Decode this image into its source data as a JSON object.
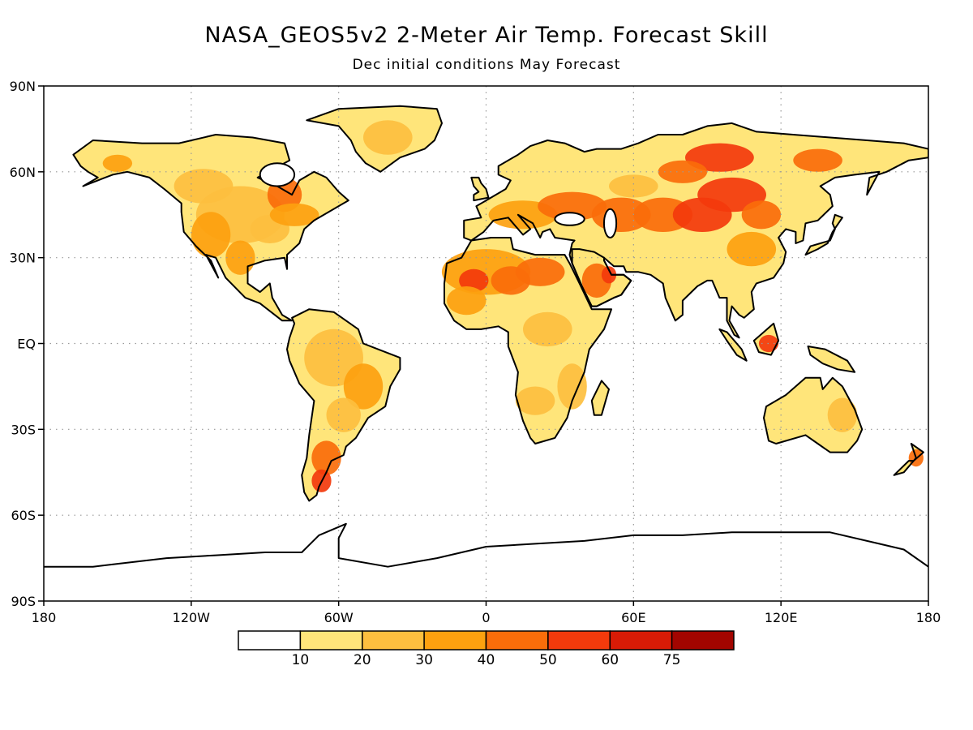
{
  "title": "NASA_GEOS5v2 2-Meter Air Temp. Forecast Skill",
  "subtitle": "Dec initial conditions   May Forecast",
  "map": {
    "projection": "equirectangular",
    "lon_range": [
      -180,
      180
    ],
    "lat_range": [
      -90,
      90
    ],
    "grid": "dotted",
    "lat_labels": [
      "90N",
      "60N",
      "30N",
      "EQ",
      "30S",
      "60S",
      "90S"
    ],
    "lon_labels": [
      "180",
      "120W",
      "60W",
      "0",
      "60E",
      "120E",
      "180"
    ]
  },
  "colorbar": {
    "bins": [
      {
        "range": "<10",
        "color": "#ffffff"
      },
      {
        "range": "10-20",
        "color": "#ffe57a"
      },
      {
        "range": "20-30",
        "color": "#fdbf3f"
      },
      {
        "range": "30-40",
        "color": "#fda10f"
      },
      {
        "range": "40-50",
        "color": "#fa6d0a"
      },
      {
        "range": "50-60",
        "color": "#f33a0c"
      },
      {
        "range": "60-75",
        "color": "#d81b06"
      },
      {
        "range": ">75",
        "color": "#a20500"
      }
    ],
    "labels": [
      "10",
      "20",
      "30",
      "40",
      "50",
      "60",
      "75"
    ]
  }
}
